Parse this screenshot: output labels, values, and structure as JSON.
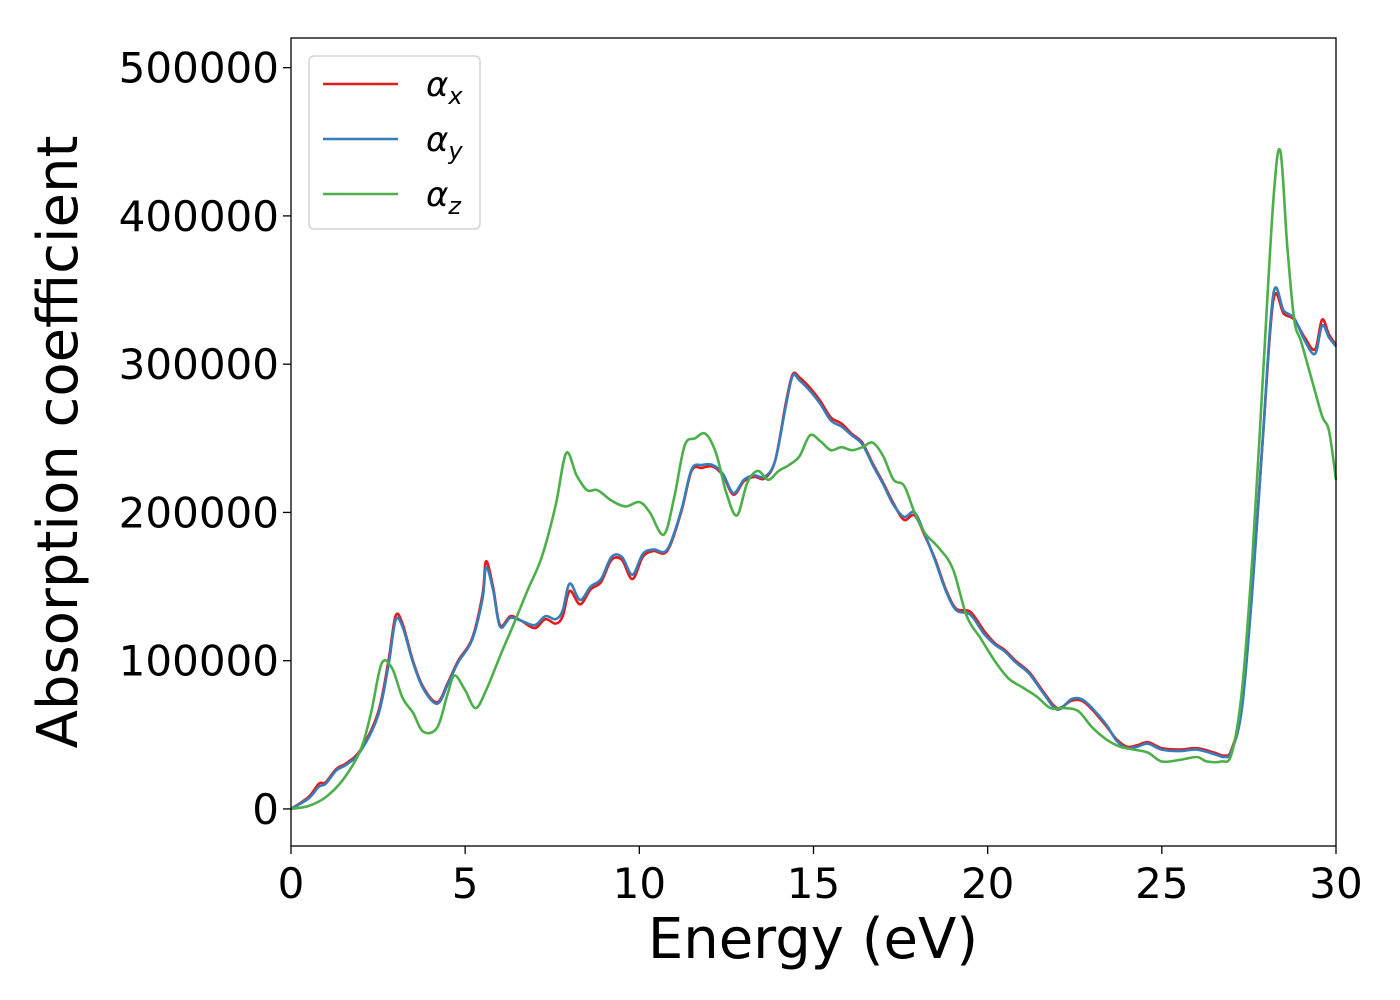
{
  "chart_data": {
    "type": "line",
    "title": "",
    "xlabel": "Energy (eV)",
    "ylabel": "Absorption coefficient",
    "xlim": [
      0,
      30
    ],
    "ylim": [
      -25000,
      520000
    ],
    "xticks": [
      0,
      5,
      10,
      15,
      20,
      25,
      30
    ],
    "xtick_labels": [
      "0",
      "5",
      "10",
      "15",
      "20",
      "25",
      "30"
    ],
    "yticks": [
      0,
      100000,
      200000,
      300000,
      400000,
      500000
    ],
    "ytick_labels": [
      "0",
      "100000",
      "200000",
      "300000",
      "400000",
      "500000"
    ],
    "grid": false,
    "legend_position": "top-left",
    "series": [
      {
        "name": "α_x",
        "legend_symbol": "α",
        "legend_subscript": "x",
        "color": "#e41a1c",
        "x": [
          0,
          0.5,
          0.8,
          1.0,
          1.3,
          1.6,
          2.0,
          2.5,
          2.8,
          3.0,
          3.2,
          3.5,
          3.8,
          4.2,
          4.5,
          4.8,
          5.2,
          5.5,
          5.6,
          5.8,
          6.0,
          6.3,
          6.6,
          7.0,
          7.3,
          7.6,
          7.8,
          8.0,
          8.3,
          8.6,
          8.9,
          9.2,
          9.5,
          9.8,
          10.1,
          10.4,
          10.8,
          11.2,
          11.5,
          11.8,
          12.1,
          12.4,
          12.7,
          13.0,
          13.3,
          13.6,
          13.9,
          14.2,
          14.4,
          14.6,
          14.9,
          15.2,
          15.5,
          15.8,
          16.1,
          16.4,
          16.7,
          17.0,
          17.3,
          17.6,
          17.9,
          18.2,
          18.5,
          18.8,
          19.1,
          19.5,
          19.9,
          20.2,
          20.5,
          20.8,
          21.2,
          21.6,
          22.0,
          22.4,
          22.7,
          23.0,
          23.4,
          23.7,
          24.0,
          24.3,
          24.6,
          25.0,
          25.5,
          26.0,
          26.5,
          26.8,
          27.0,
          27.3,
          27.6,
          27.9,
          28.2,
          28.5,
          28.8,
          29.1,
          29.4,
          29.6,
          29.8,
          30.0
        ],
        "y": [
          0,
          8000,
          17000,
          18000,
          27000,
          31000,
          40000,
          65000,
          100000,
          130000,
          125000,
          100000,
          82000,
          72000,
          85000,
          100000,
          115000,
          145000,
          167000,
          150000,
          124000,
          130000,
          127000,
          122000,
          128000,
          125000,
          130000,
          147000,
          138000,
          148000,
          153000,
          168000,
          168000,
          155000,
          170000,
          174000,
          174000,
          200000,
          228000,
          230000,
          231000,
          225000,
          212000,
          221000,
          224000,
          223000,
          235000,
          273000,
          293000,
          291000,
          284000,
          275000,
          264000,
          260000,
          253000,
          247000,
          233000,
          220000,
          206000,
          195000,
          198000,
          184000,
          168000,
          148000,
          135000,
          133000,
          120000,
          112000,
          107000,
          100000,
          92000,
          79000,
          68000,
          73000,
          73000,
          67000,
          56000,
          47000,
          42000,
          43000,
          45000,
          41000,
          40000,
          41000,
          38000,
          36000,
          40000,
          70000,
          150000,
          250000,
          343000,
          334000,
          330000,
          318000,
          310000,
          330000,
          320000,
          313000
        ]
      },
      {
        "name": "α_y",
        "legend_symbol": "α",
        "legend_subscript": "y",
        "color": "#377eb8",
        "x": [
          0,
          0.5,
          0.8,
          1.0,
          1.3,
          1.6,
          2.0,
          2.5,
          2.8,
          3.0,
          3.2,
          3.5,
          3.8,
          4.2,
          4.5,
          4.8,
          5.2,
          5.5,
          5.6,
          5.8,
          6.0,
          6.3,
          6.6,
          7.0,
          7.3,
          7.6,
          7.8,
          8.0,
          8.3,
          8.6,
          8.9,
          9.2,
          9.5,
          9.8,
          10.1,
          10.4,
          10.8,
          11.2,
          11.5,
          11.8,
          12.1,
          12.4,
          12.7,
          13.0,
          13.3,
          13.6,
          13.9,
          14.2,
          14.4,
          14.6,
          14.9,
          15.2,
          15.5,
          15.8,
          16.1,
          16.4,
          16.7,
          17.0,
          17.3,
          17.6,
          17.9,
          18.2,
          18.5,
          18.8,
          19.1,
          19.5,
          19.9,
          20.2,
          20.5,
          20.8,
          21.2,
          21.6,
          22.0,
          22.4,
          22.7,
          23.0,
          23.4,
          23.7,
          24.0,
          24.3,
          24.6,
          25.0,
          25.5,
          26.0,
          26.5,
          26.8,
          27.0,
          27.3,
          27.6,
          27.9,
          28.2,
          28.5,
          28.8,
          29.1,
          29.4,
          29.6,
          29.8,
          30.0
        ],
        "y": [
          0,
          7000,
          15000,
          17000,
          26000,
          30000,
          39000,
          63000,
          97000,
          127000,
          123000,
          99000,
          81000,
          71000,
          84000,
          99000,
          114000,
          142000,
          163000,
          148000,
          123000,
          129000,
          127000,
          124000,
          130000,
          128000,
          134000,
          152000,
          141000,
          150000,
          155000,
          170000,
          170000,
          158000,
          172000,
          175000,
          175000,
          201000,
          229000,
          232000,
          232000,
          226000,
          213000,
          222000,
          225000,
          224000,
          235000,
          271000,
          292000,
          289000,
          282000,
          273000,
          262000,
          258000,
          252000,
          246000,
          232000,
          219000,
          205000,
          197000,
          200000,
          185000,
          167000,
          147000,
          134000,
          131000,
          118000,
          111000,
          106000,
          99000,
          91000,
          78000,
          67000,
          74000,
          74000,
          68000,
          57000,
          46000,
          41000,
          42000,
          44000,
          40000,
          39000,
          40000,
          37000,
          35000,
          39000,
          68000,
          148000,
          250000,
          347000,
          336000,
          331000,
          316000,
          307000,
          326000,
          318000,
          312000
        ]
      },
      {
        "name": "α_z",
        "legend_symbol": "α",
        "legend_subscript": "z",
        "color": "#4daf4a",
        "x": [
          0,
          0.5,
          1.0,
          1.5,
          2.0,
          2.3,
          2.6,
          2.9,
          3.2,
          3.5,
          3.8,
          4.2,
          4.5,
          4.7,
          5.0,
          5.3,
          5.6,
          6.0,
          6.4,
          6.8,
          7.2,
          7.6,
          7.9,
          8.2,
          8.5,
          8.8,
          9.2,
          9.6,
          10.0,
          10.3,
          10.7,
          11.0,
          11.3,
          11.6,
          11.9,
          12.2,
          12.5,
          12.8,
          13.1,
          13.4,
          13.7,
          14.0,
          14.3,
          14.6,
          14.9,
          15.2,
          15.5,
          15.8,
          16.1,
          16.4,
          16.7,
          17.0,
          17.3,
          17.6,
          17.9,
          18.2,
          18.6,
          19.0,
          19.4,
          19.8,
          20.2,
          20.6,
          21.0,
          21.4,
          21.8,
          22.2,
          22.6,
          23.0,
          23.4,
          23.8,
          24.2,
          24.6,
          25.0,
          25.5,
          26.0,
          26.3,
          26.7,
          27.0,
          27.3,
          27.6,
          27.9,
          28.2,
          28.4,
          28.6,
          28.8,
          29.0,
          29.3,
          29.6,
          29.8,
          30.0
        ],
        "y": [
          0,
          2000,
          8000,
          20000,
          40000,
          65000,
          98000,
          95000,
          75000,
          65000,
          52000,
          55000,
          78000,
          90000,
          80000,
          68000,
          80000,
          103000,
          125000,
          148000,
          170000,
          205000,
          240000,
          225000,
          215000,
          215000,
          208000,
          204000,
          207000,
          200000,
          185000,
          210000,
          245000,
          250000,
          253000,
          240000,
          213000,
          198000,
          220000,
          228000,
          222000,
          228000,
          232000,
          238000,
          252000,
          248000,
          242000,
          244000,
          242000,
          244000,
          247000,
          238000,
          222000,
          218000,
          200000,
          186000,
          176000,
          162000,
          130000,
          115000,
          100000,
          88000,
          82000,
          76000,
          68000,
          68000,
          66000,
          55000,
          47000,
          42000,
          40000,
          38000,
          32000,
          33000,
          35000,
          32000,
          32000,
          37000,
          80000,
          170000,
          290000,
          410000,
          444000,
          380000,
          330000,
          315000,
          290000,
          265000,
          255000,
          222000
        ]
      }
    ]
  }
}
